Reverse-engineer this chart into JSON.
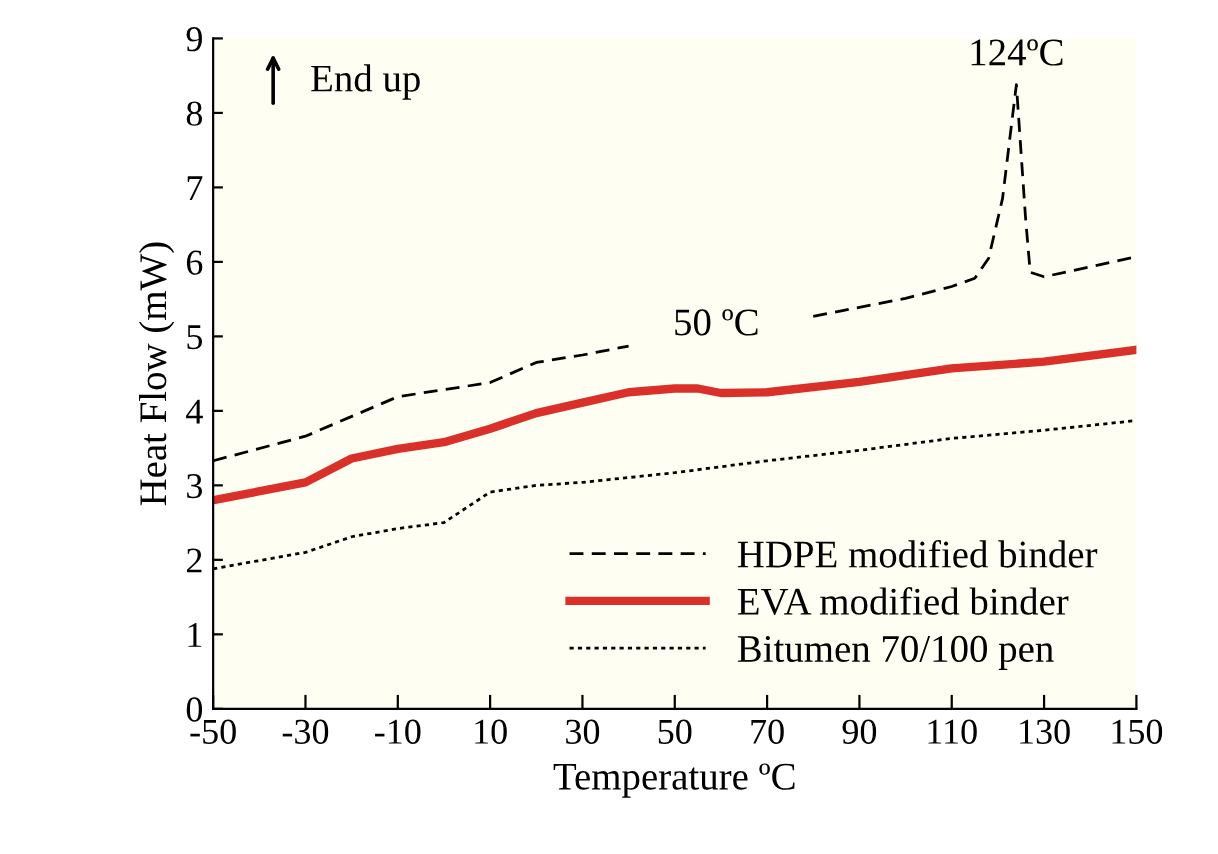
{
  "chart_data": {
    "type": "line",
    "xlabel": "Temperature ºC",
    "ylabel": "Heat Flow (mW)",
    "xlim": [
      -50,
      150
    ],
    "xticks": [
      -50,
      -30,
      -10,
      10,
      30,
      50,
      70,
      90,
      110,
      130,
      150
    ],
    "ylim": [
      0,
      9
    ],
    "yticks": [
      0,
      1,
      2,
      3,
      4,
      5,
      6,
      7,
      8,
      9
    ],
    "grid": false,
    "legend": "bottom right",
    "annotations": [
      "End up",
      "50 ºC",
      {
        "text": "124ºC",
        "x": 124,
        "y": 8.38
      }
    ],
    "series": [
      {
        "name": "HDPE modified binder",
        "color": "#000000",
        "line_style": "dashed",
        "x": [
          -50,
          -30,
          -10,
          10,
          20,
          30,
          40,
          60,
          80,
          100,
          110,
          115,
          118,
          121,
          124,
          126,
          127,
          130,
          150
        ],
        "values": [
          3.33,
          3.66,
          4.19,
          4.38,
          4.65,
          4.75,
          4.87,
          null,
          5.27,
          5.51,
          5.67,
          5.78,
          6.05,
          6.85,
          8.38,
          6.58,
          5.86,
          5.8,
          6.07
        ]
      },
      {
        "name": "EVA modified binder",
        "color": "#d9302a",
        "line_style": "solid",
        "x": [
          -50,
          -30,
          -20,
          -10,
          0,
          10,
          20,
          30,
          40,
          50,
          55,
          60,
          70,
          90,
          110,
          130,
          150
        ],
        "values": [
          2.8,
          3.04,
          3.36,
          3.49,
          3.58,
          3.76,
          3.97,
          4.11,
          4.25,
          4.3,
          4.3,
          4.24,
          4.25,
          4.39,
          4.57,
          4.66,
          4.82
        ]
      },
      {
        "name": "Bitumen 70/100 pen",
        "color": "#000000",
        "line_style": "dotted",
        "x": [
          -50,
          -30,
          -20,
          -10,
          0,
          10,
          20,
          30,
          50,
          70,
          90,
          110,
          130,
          150
        ],
        "values": [
          1.88,
          2.1,
          2.31,
          2.42,
          2.5,
          2.91,
          3.0,
          3.04,
          3.17,
          3.33,
          3.47,
          3.63,
          3.74,
          3.87
        ]
      }
    ]
  }
}
